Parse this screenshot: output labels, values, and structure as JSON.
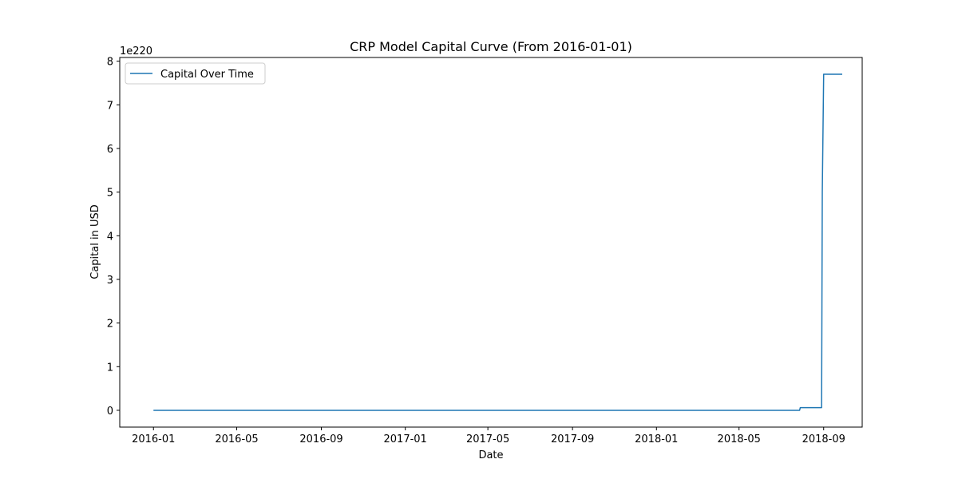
{
  "chart_data": {
    "type": "line",
    "title": "CRP Model Capital Curve (From 2016-01-01)",
    "xlabel": "Date",
    "ylabel": "Capital in USD",
    "y_scale_label": "1e220",
    "xlim": [
      "2015-11-13",
      "2018-10-27"
    ],
    "ylim": [
      -0.385,
      8.085
    ],
    "x_ticks": [
      "2016-01-01",
      "2016-05-01",
      "2016-09-01",
      "2017-01-01",
      "2017-05-01",
      "2017-09-01",
      "2018-01-01",
      "2018-05-01",
      "2018-09-01"
    ],
    "x_tick_labels": [
      "2016-01",
      "2016-05",
      "2016-09",
      "2017-01",
      "2017-05",
      "2017-09",
      "2018-01",
      "2018-05",
      "2018-09"
    ],
    "y_ticks": [
      0,
      1,
      2,
      3,
      4,
      5,
      6,
      7,
      8
    ],
    "y_tick_labels": [
      "0",
      "1",
      "2",
      "3",
      "4",
      "5",
      "6",
      "7",
      "8"
    ],
    "grid": false,
    "legend_position": "top-left",
    "series": [
      {
        "name": "Capital Over Time",
        "color": "#1f77b4",
        "x": [
          "2016-01-01",
          "2018-07-28",
          "2018-07-29",
          "2018-08-29",
          "2018-08-30",
          "2018-09-01",
          "2018-09-28"
        ],
        "y": [
          0,
          0,
          0.06,
          0.06,
          5.0,
          7.7,
          7.7
        ]
      }
    ]
  }
}
